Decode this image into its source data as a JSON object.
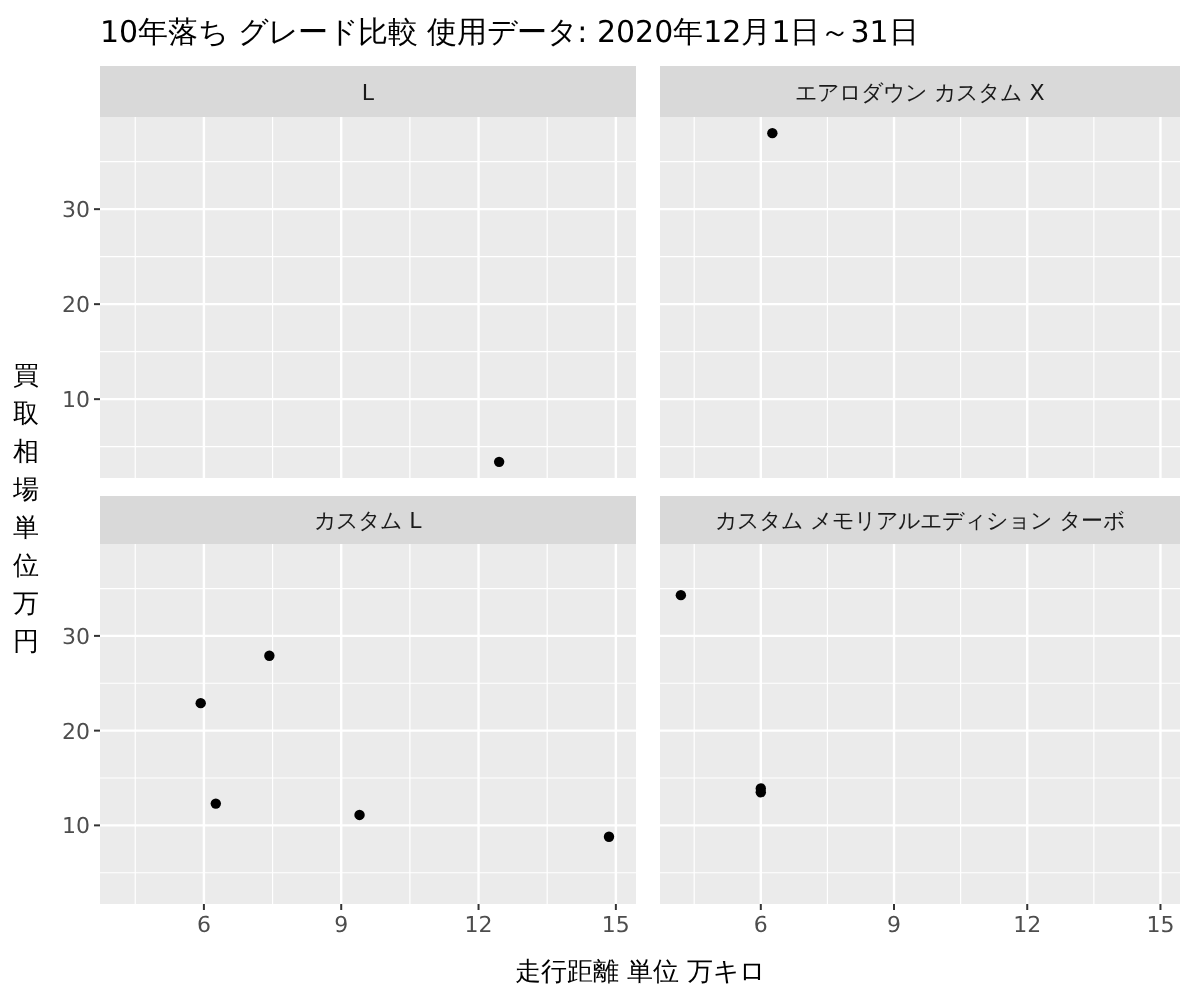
{
  "chart_data": [
    {
      "type": "scatter",
      "title": "L",
      "annotations": [
        "10年落ち グレード比較 使用データ: 2020年12月1日～31日"
      ],
      "ylabel": "買取相場単位万円",
      "x": [
        12.45
      ],
      "values": [
        3.4
      ],
      "color": "#000000",
      "xlim": [
        3.73,
        15.44
      ],
      "ylim": [
        1.7,
        39.7
      ],
      "xticks": [
        6,
        9,
        12,
        15
      ],
      "yticks": [
        10,
        20,
        30
      ],
      "grid": true,
      "tick_labels": "y",
      "marker": "circle"
    },
    {
      "type": "scatter",
      "title": "エアロダウン カスタム X",
      "x": [
        6.26
      ],
      "values": [
        38.0
      ],
      "color": "#000000",
      "xlim": [
        3.73,
        15.44
      ],
      "ylim": [
        1.7,
        39.7
      ],
      "xticks": [
        6,
        9,
        12,
        15
      ],
      "yticks": [
        10,
        20,
        30
      ],
      "grid": true,
      "tick_labels": false,
      "marker": "circle"
    },
    {
      "type": "scatter",
      "title": "カスタム L",
      "xlabel": "走行距離 単位 万キロ",
      "x": [
        5.93,
        7.43,
        6.26,
        9.4,
        14.85
      ],
      "values": [
        22.9,
        27.9,
        12.3,
        11.1,
        8.8
      ],
      "color": "#000000",
      "xlim": [
        3.73,
        15.44
      ],
      "ylim": [
        1.7,
        39.7
      ],
      "xticks": [
        6,
        9,
        12,
        15
      ],
      "yticks": [
        10,
        20,
        30
      ],
      "grid": true,
      "marker": "circle"
    },
    {
      "type": "scatter",
      "title": "カスタム メモリアルエディション ターボ",
      "x": [
        4.2,
        6.0,
        6.0
      ],
      "values": [
        34.3,
        13.9,
        13.5
      ],
      "color": "#000000",
      "xlim": [
        3.73,
        15.44
      ],
      "ylim": [
        1.7,
        39.7
      ],
      "xticks": [
        6,
        9,
        12,
        15
      ],
      "yticks": [
        10,
        20,
        30
      ],
      "grid": true,
      "tick_labels": "x",
      "marker": "circle"
    }
  ]
}
